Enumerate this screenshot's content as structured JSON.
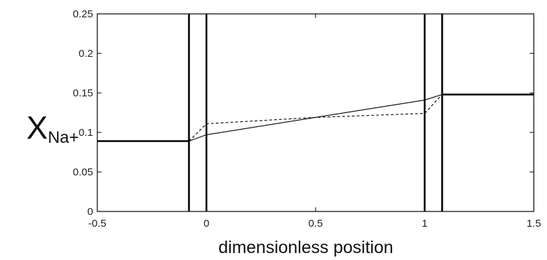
{
  "chart_data": {
    "type": "line",
    "title": "",
    "xlabel": "dimensionless position",
    "ylabel": {
      "base": "X",
      "subscript": "Na+"
    },
    "xlim": [
      -0.5,
      1.5
    ],
    "ylim": [
      0,
      0.25
    ],
    "xticks": [
      "-0.5",
      "0",
      "0.5",
      "1",
      "1.5"
    ],
    "yticks": [
      "0",
      "0.05",
      "0.1",
      "0.15",
      "0.2",
      "0.25"
    ],
    "grid": false,
    "legend": "none",
    "vertical_lines": [
      -0.08,
      0,
      1,
      1.08
    ],
    "series": [
      {
        "style": "solid-thick",
        "x": [
          -0.5,
          -0.08
        ],
        "y": [
          0.089,
          0.089
        ]
      },
      {
        "style": "solid-thin",
        "x": [
          -0.08,
          0,
          0.5,
          1,
          1.08
        ],
        "y": [
          0.089,
          0.097,
          0.119,
          0.141,
          0.148
        ]
      },
      {
        "style": "dashed",
        "x": [
          -0.08,
          -0.04,
          0,
          0.5,
          1,
          1.08
        ],
        "y": [
          0.089,
          0.1,
          0.111,
          0.119,
          0.124,
          0.148
        ]
      },
      {
        "style": "solid-thick",
        "x": [
          1.08,
          1.5
        ],
        "y": [
          0.148,
          0.148
        ]
      }
    ]
  }
}
